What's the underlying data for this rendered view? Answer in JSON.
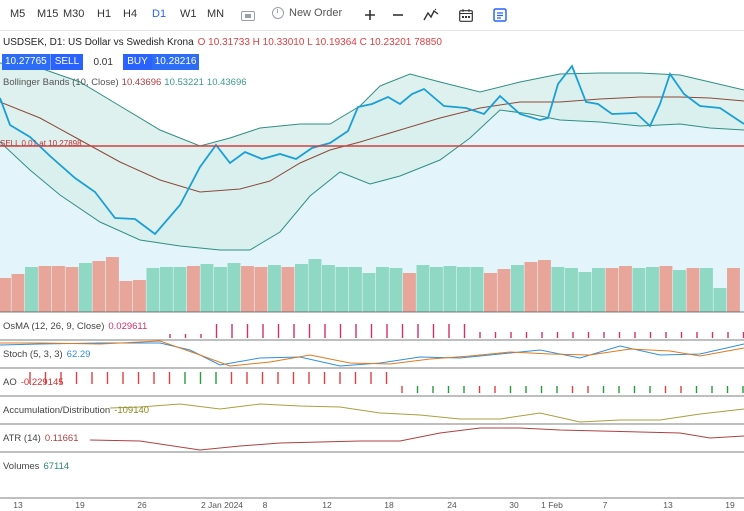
{
  "toolbar": {
    "timeframes": [
      "M5",
      "M15",
      "M30",
      "H1",
      "H4",
      "D1",
      "W1",
      "MN"
    ],
    "active_timeframe": "D1",
    "new_order_label": "New Order",
    "icons": [
      "camera-icon",
      "clock-icon",
      "plus-icon",
      "minus-icon",
      "indicator-icon",
      "calendar-icon",
      "book-icon"
    ]
  },
  "chart": {
    "symbol_title": "USDSEK, D1: US Dollar vs Swedish Krona",
    "ohlc": "O 10.31733 H 10.33010 L 10.19364 C 10.23201 78850",
    "sell_price": "10.27765",
    "sell_label": "SELL",
    "lot": "0.01",
    "buy_label": "BUY",
    "buy_price": "10.28216",
    "sell_line_label": "SELL 0.01 at 10.27898",
    "bollinger": {
      "label": "Bollinger Bands (10, Close)",
      "v1": "10.43696",
      "v2": "10.53221",
      "v3": "10.43696"
    }
  },
  "indicators": {
    "osma": {
      "label": "OsMA (12, 26, 9, Close)",
      "value": "0.029611"
    },
    "stoch": {
      "label": "Stoch (5, 3, 3)",
      "value": "62.29"
    },
    "ao": {
      "label": "AO",
      "value": "-0.229145"
    },
    "ad": {
      "label": "Accumulation/Distribution",
      "value": "-109140"
    },
    "atr": {
      "label": "ATR (14)",
      "value": "0.11661"
    },
    "volumes": {
      "label": "Volumes",
      "value": "67114"
    }
  },
  "xaxis": {
    "labels": [
      "13",
      "19",
      "26",
      "2 Jan 2024",
      "8",
      "12",
      "18",
      "24",
      "30",
      "1 Feb",
      "7",
      "13",
      "19"
    ]
  },
  "colors": {
    "accent": "#2962ff",
    "price_line": "#1a9fd6",
    "band_fill": "#dff3f0",
    "volume_up": "#8fd8c4",
    "volume_down": "#e8a59a",
    "sell_line": "#d04040"
  }
}
